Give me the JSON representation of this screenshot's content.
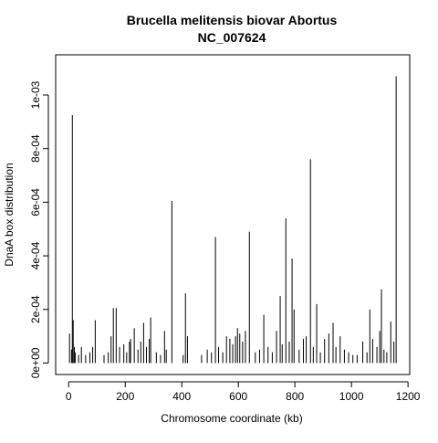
{
  "chart_data": {
    "type": "spike",
    "title": [
      "Brucella melitensis biovar Abortus",
      "NC_007624"
    ],
    "x_label": "Chromosome coordinate (kb)",
    "y_label": "DnaA box distribution",
    "color": "#000000",
    "x": [
      3,
      10,
      13,
      16,
      20,
      23,
      35,
      45,
      60,
      75,
      85,
      94,
      125,
      140,
      150,
      158,
      168,
      180,
      195,
      205,
      215,
      219,
      232,
      245,
      255,
      265,
      275,
      285,
      290,
      310,
      325,
      339,
      345,
      365,
      405,
      413,
      420,
      470,
      490,
      505,
      519,
      530,
      545,
      558,
      570,
      580,
      590,
      597,
      605,
      615,
      625,
      639,
      660,
      675,
      690,
      705,
      720,
      735,
      748,
      755,
      768,
      780,
      790,
      797,
      815,
      830,
      840,
      855,
      865,
      877,
      890,
      905,
      920,
      935,
      945,
      960,
      975,
      990,
      1005,
      1020,
      1040,
      1055,
      1065,
      1075,
      1090,
      1100,
      1106,
      1115,
      1125,
      1139,
      1150,
      1158
    ],
    "values": [
      0.00011,
      5e-05,
      0.000925,
      0.00016,
      6e-05,
      4e-05,
      3e-05,
      6e-05,
      3e-05,
      4e-05,
      6e-05,
      0.00016,
      3e-05,
      4e-05,
      0.0001,
      0.000205,
      0.000205,
      6e-05,
      7e-05,
      4e-05,
      8e-05,
      9e-05,
      0.00013,
      5e-05,
      8e-05,
      0.00015,
      6e-05,
      9e-05,
      0.00017,
      4e-05,
      3e-05,
      0.00012,
      5e-05,
      0.000605,
      3e-05,
      0.00026,
      0.0001,
      3e-05,
      5e-05,
      4e-05,
      0.00047,
      6e-05,
      4e-05,
      0.0001,
      9e-05,
      7e-05,
      0.0001,
      0.00013,
      0.00011,
      8e-05,
      0.00012,
      0.00049,
      4e-05,
      5e-05,
      0.00018,
      6e-05,
      4e-05,
      0.00012,
      0.00025,
      7e-05,
      0.00054,
      8e-05,
      0.00039,
      0.0002,
      5e-05,
      9e-05,
      0.0001,
      0.00076,
      6e-05,
      0.00022,
      4e-05,
      9e-05,
      0.00011,
      0.00015,
      6e-05,
      0.0001,
      5e-05,
      4e-05,
      3e-05,
      3e-05,
      8e-05,
      4e-05,
      0.0002,
      9e-05,
      6e-05,
      0.00012,
      0.000275,
      5e-05,
      4e-05,
      0.000155,
      8e-05,
      0.00107
    ],
    "xlim": [
      -46,
      1206
    ],
    "ylim": [
      -4.28e-05,
      0.00115
    ],
    "xticks": [
      0,
      200,
      400,
      600,
      800,
      1000,
      1200
    ],
    "yticks": [
      {
        "value": 0,
        "label": "0e+00"
      },
      {
        "value": 0.0002,
        "label": "2e-04"
      },
      {
        "value": 0.0004,
        "label": "4e-04"
      },
      {
        "value": 0.0006,
        "label": "6e-04"
      },
      {
        "value": 0.0008,
        "label": "8e-04"
      },
      {
        "value": 0.001,
        "label": "1e-03"
      }
    ]
  }
}
